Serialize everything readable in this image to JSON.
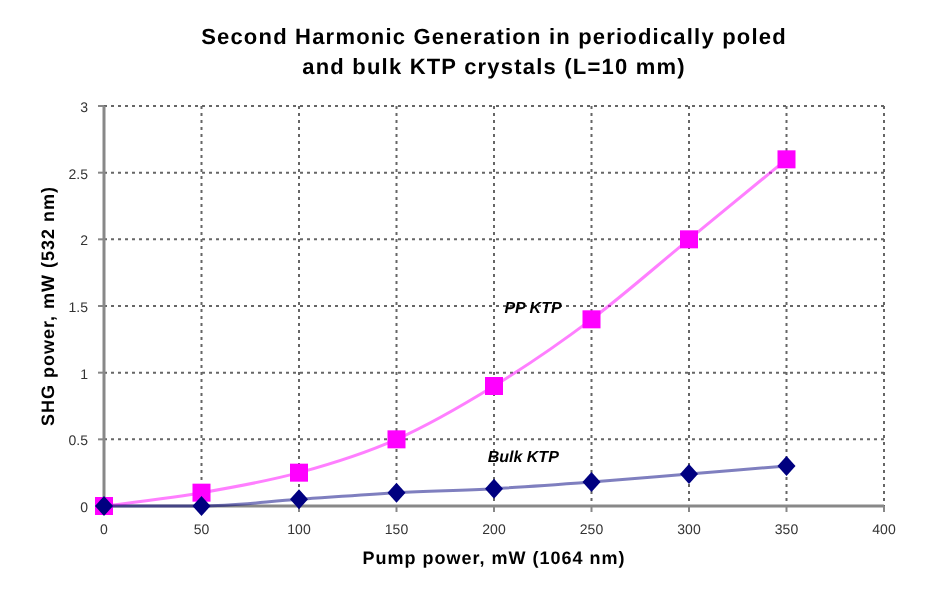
{
  "chart_data": {
    "type": "line",
    "title": "Second Harmonic Generation in periodically poled\nand bulk KTP crystals (L=10 mm)",
    "xlabel": "Pump power, mW (1064 nm)",
    "ylabel": "SHG power, mW (532 nm)",
    "x": [
      0,
      50,
      100,
      150,
      200,
      250,
      300,
      350
    ],
    "series": [
      {
        "name": "PP KTP",
        "color": "#ff00ff",
        "marker": "square",
        "values": [
          0,
          0.1,
          0.25,
          0.5,
          0.9,
          1.4,
          2.0,
          2.6
        ]
      },
      {
        "name": "Bulk KTP",
        "color": "#000080",
        "marker": "diamond",
        "values": [
          0,
          0,
          0.05,
          0.1,
          0.13,
          0.18,
          0.24,
          0.3
        ]
      }
    ],
    "xlim": [
      0,
      400
    ],
    "xticks": [
      0,
      50,
      100,
      150,
      200,
      250,
      300,
      350,
      400
    ],
    "ylim": [
      0,
      3
    ],
    "yticks": [
      0,
      0.5,
      1,
      1.5,
      2,
      2.5,
      3
    ],
    "grid": true
  }
}
